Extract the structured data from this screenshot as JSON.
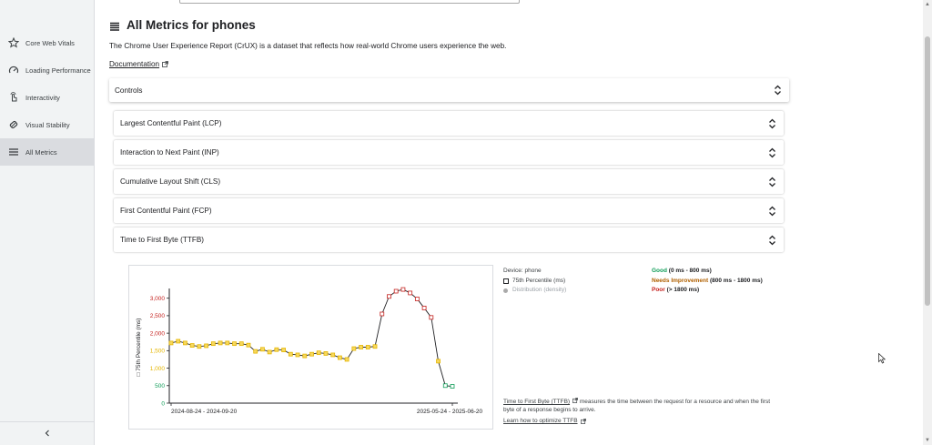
{
  "sidebar": {
    "items": [
      {
        "label": "Core Web Vitals",
        "icon": "star-icon"
      },
      {
        "label": "Loading Performance",
        "icon": "speedometer-icon"
      },
      {
        "label": "Interactivity",
        "icon": "touch-icon"
      },
      {
        "label": "Visual Stability",
        "icon": "stability-icon"
      },
      {
        "label": "All Metrics",
        "icon": "list-icon",
        "active": true
      }
    ]
  },
  "header": {
    "title": "All Metrics for phones",
    "intro": "The Chrome User Experience Report (CrUX) is a dataset that reflects how real-world Chrome users experience the web.",
    "doc_link": "Documentation"
  },
  "controls": {
    "label": "Controls"
  },
  "metrics": [
    "Largest Contentful Paint (LCP)",
    "Interaction to Next Paint (INP)",
    "Cumulative Layout Shift (CLS)",
    "First Contentful Paint (FCP)",
    "Time to First Byte (TTFB)"
  ],
  "legend": {
    "device": "Device: phone",
    "p75": "75th Percentile (ms)",
    "distribution": "Distribution (density)"
  },
  "thresholds": {
    "good": {
      "label": "Good",
      "range": "(0 ms - 800 ms)",
      "color": "#0f9d58"
    },
    "ni": {
      "label": "Needs Improvement",
      "range": "(800 ms - 1800 ms)",
      "color": "#b06000"
    },
    "poor": {
      "label": "Poor",
      "range": "(> 1800 ms)",
      "color": "#c5221f"
    }
  },
  "description": {
    "link": "Time to First Byte (TTFB)",
    "text": " measures the time between the request for a resource and when the first byte of a response begins to arrive.",
    "optimize": "Learn how to optimize TTFB"
  },
  "chart_data": {
    "type": "line",
    "ylabel": "75th Percentile (ms)",
    "ylim": [
      0,
      3200
    ],
    "yticks": [
      0,
      500,
      1000,
      1500,
      2000,
      2500,
      3000
    ],
    "ytick_labels": [
      "0",
      "500",
      "1,000",
      "1,500",
      "2,000",
      "2,500",
      "3,000"
    ],
    "x_labels": [
      "2024-08-24 - 2024-09-20",
      "2025-05-24 - 2025-06-20"
    ],
    "x_label_indices": [
      0,
      40
    ],
    "values": [
      1720,
      1770,
      1720,
      1650,
      1620,
      1640,
      1700,
      1720,
      1720,
      1700,
      1700,
      1660,
      1480,
      1540,
      1460,
      1530,
      1520,
      1400,
      1380,
      1350,
      1400,
      1440,
      1420,
      1380,
      1300,
      1250,
      1560,
      1600,
      1600,
      1620,
      2550,
      3050,
      3200,
      3250,
      3150,
      2980,
      2720,
      2450,
      1200,
      500,
      480
    ],
    "colors": {
      "good": "#0f9d58",
      "ni": "#e5b600",
      "poor": "#c5221f",
      "line": "#202124"
    },
    "thresholds": [
      800,
      1800
    ]
  }
}
